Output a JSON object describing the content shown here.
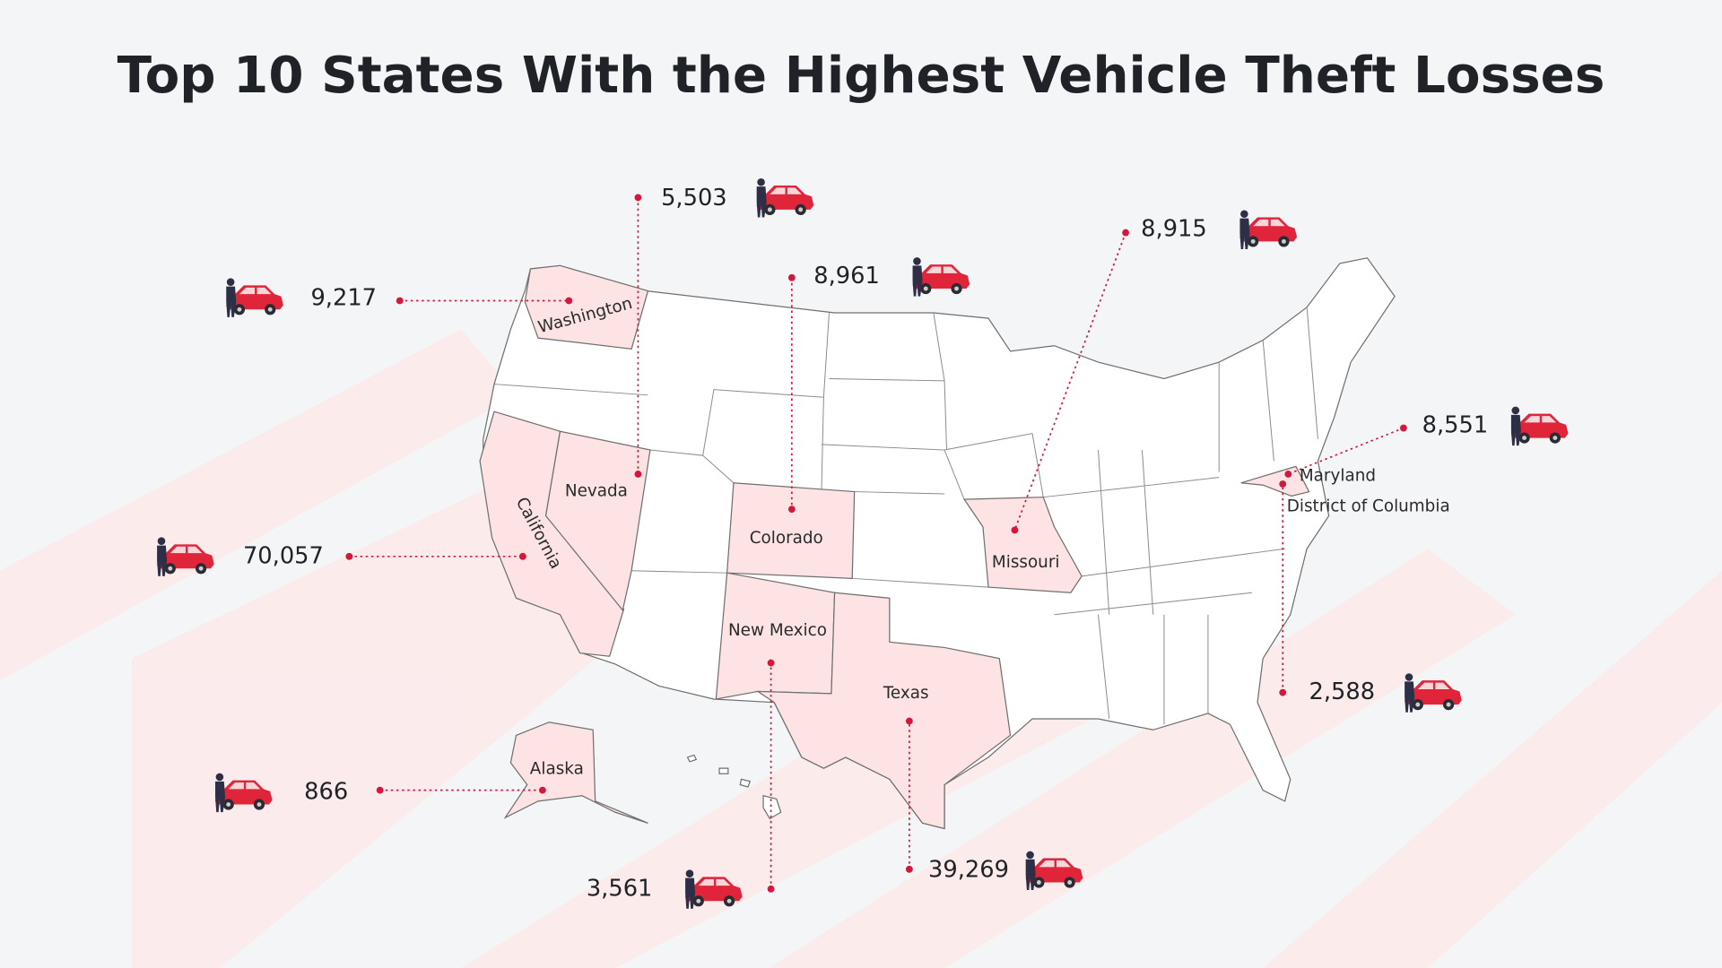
{
  "title": "Top 10 States With the Highest Vehicle Theft Losses",
  "states": [
    {
      "name": "Washington",
      "value": "9,217"
    },
    {
      "name": "Nevada",
      "value": "5,503"
    },
    {
      "name": "Colorado",
      "value": "8,961"
    },
    {
      "name": "Missouri",
      "value": "8,915"
    },
    {
      "name": "Maryland",
      "value": "8,551"
    },
    {
      "name": "District of Columbia",
      "value": "2,588"
    },
    {
      "name": "California",
      "value": "70,057"
    },
    {
      "name": "New Mexico",
      "value": "3,561"
    },
    {
      "name": "Texas",
      "value": "39,269"
    },
    {
      "name": "Alaska",
      "value": "866"
    }
  ]
}
